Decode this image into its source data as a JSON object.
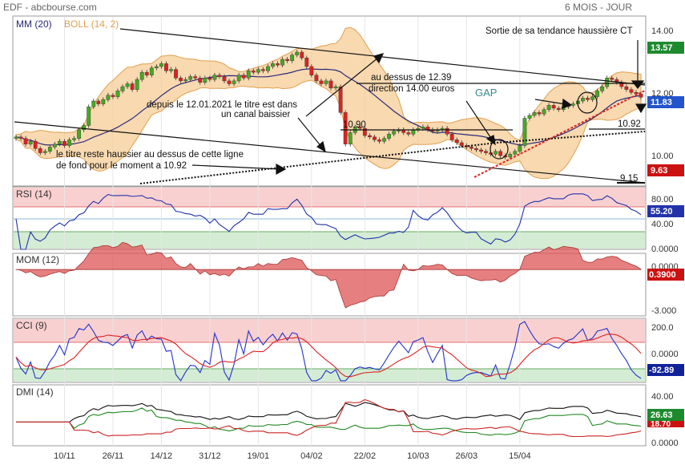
{
  "header": {
    "source": "EDF - abcbourse.com",
    "period": "6 MOIS - JOUR"
  },
  "colors": {
    "up": "#44aa22",
    "down": "#dd2222",
    "mm": "#2a2a7a",
    "boll_fill": "#f5c98e",
    "boll_line": "#e0a050",
    "rsi": "#2233aa",
    "mom": "#dd5555",
    "cci": "#2233cc",
    "cci_signal": "#dd2222",
    "dmi_adx": "#111111",
    "dmi_plus": "#228822",
    "dmi_minus": "#cc2222",
    "overbought": "#f9d0d0",
    "oversold": "#d4ecd4",
    "badge_green": "#1e8a2e",
    "badge_blue": "#2255cc",
    "badge_red": "#cc1111",
    "badge_darkblue": "#112299"
  },
  "chart_data": [
    {
      "type": "candlestick",
      "title": "",
      "legend": [
        "MM (20)",
        "BOLL (14, 2)"
      ],
      "ylim": [
        8.8,
        14.6
      ],
      "yticks": [
        "14.00",
        "12.00",
        "10.00"
      ],
      "xticks": [
        "10/11",
        "26/11",
        "14/12",
        "31/12",
        "19/01",
        "04/02",
        "22/02",
        "10/03",
        "26/03",
        "15/04"
      ],
      "badges": [
        "13.57",
        "11.83",
        "9.63"
      ],
      "levels": [
        "10.90",
        "10.92",
        "9.15",
        "12.39"
      ],
      "close": [
        10.45,
        10.4,
        10.2,
        10.3,
        10.05,
        9.9,
        9.95,
        10.1,
        10.2,
        10.3,
        10.15,
        10.35,
        10.4,
        10.7,
        10.85,
        11.5,
        11.7,
        11.6,
        11.75,
        11.9,
        11.85,
        12.05,
        12.2,
        12.3,
        12.1,
        12.45,
        12.7,
        12.6,
        12.85,
        12.9,
        13.0,
        12.75,
        12.8,
        12.5,
        12.4,
        12.45,
        12.55,
        12.5,
        12.35,
        12.5,
        12.45,
        12.6,
        12.55,
        12.4,
        12.3,
        12.4,
        12.6,
        12.5,
        12.75,
        12.7,
        12.8,
        12.75,
        12.9,
        13.0,
        12.95,
        13.15,
        13.1,
        13.3,
        13.4,
        13.2,
        12.9,
        12.6,
        12.4,
        12.3,
        12.4,
        12.15,
        12.2,
        11.3,
        10.2,
        10.6,
        10.8,
        10.75,
        10.5,
        10.45,
        10.35,
        10.3,
        10.4,
        10.55,
        10.65,
        10.7,
        10.6,
        10.55,
        10.7,
        10.75,
        10.8,
        10.7,
        10.65,
        10.7,
        10.75,
        10.55,
        10.35,
        10.25,
        10.15,
        10.1,
        10.05,
        10.0,
        9.95,
        9.9,
        9.85,
        9.95,
        9.8,
        9.75,
        9.85,
        9.95,
        10.15,
        11.1,
        11.2,
        11.3,
        11.25,
        11.4,
        11.55,
        11.45,
        11.4,
        11.5,
        11.55,
        11.6,
        11.7,
        11.8,
        11.75,
        11.85,
        12.05,
        12.2,
        12.5,
        12.45,
        12.35,
        12.2,
        12.1,
        12.0,
        11.95,
        11.83
      ]
    },
    {
      "type": "line",
      "name": "RSI (14)",
      "ylim": [
        0,
        100
      ],
      "yticks": [
        "80.00",
        "40.00",
        "0.0000"
      ],
      "badge": "55.20"
    },
    {
      "type": "area",
      "name": "MOM (12)",
      "ylim": [
        -3.5,
        1.1
      ],
      "yticks": [
        "0.0000",
        "-3.000"
      ],
      "badge": "0.3900"
    },
    {
      "type": "line",
      "name": "CCI (9)",
      "ylim": [
        -150,
        220
      ],
      "yticks": [
        "200.0",
        "0.0000"
      ],
      "badge": "-92.89"
    },
    {
      "type": "line",
      "name": "DMI (14)",
      "ylim": [
        0,
        50
      ],
      "yticks": [
        "40.00",
        "0.0000"
      ],
      "badges": [
        "26.63",
        "18.70"
      ]
    }
  ],
  "annotations": {
    "sortie": "Sortie de sa tendance haussière CT",
    "au_dessus_line1": "au dessus de 12.39",
    "au_dessus_line2": "direction 14.00 euros",
    "gap": "GAP",
    "depuis_line1": "depuis le 12.01.2021 le titre est dans",
    "depuis_line2": "un canal baissier",
    "reste_line1": "le titre reste haussier au dessus de cette ligne",
    "reste_line2": "de fond pour le moment a 10.92",
    "level_1090": "10.90",
    "level_1092": "10.92",
    "level_915": "9.15"
  }
}
